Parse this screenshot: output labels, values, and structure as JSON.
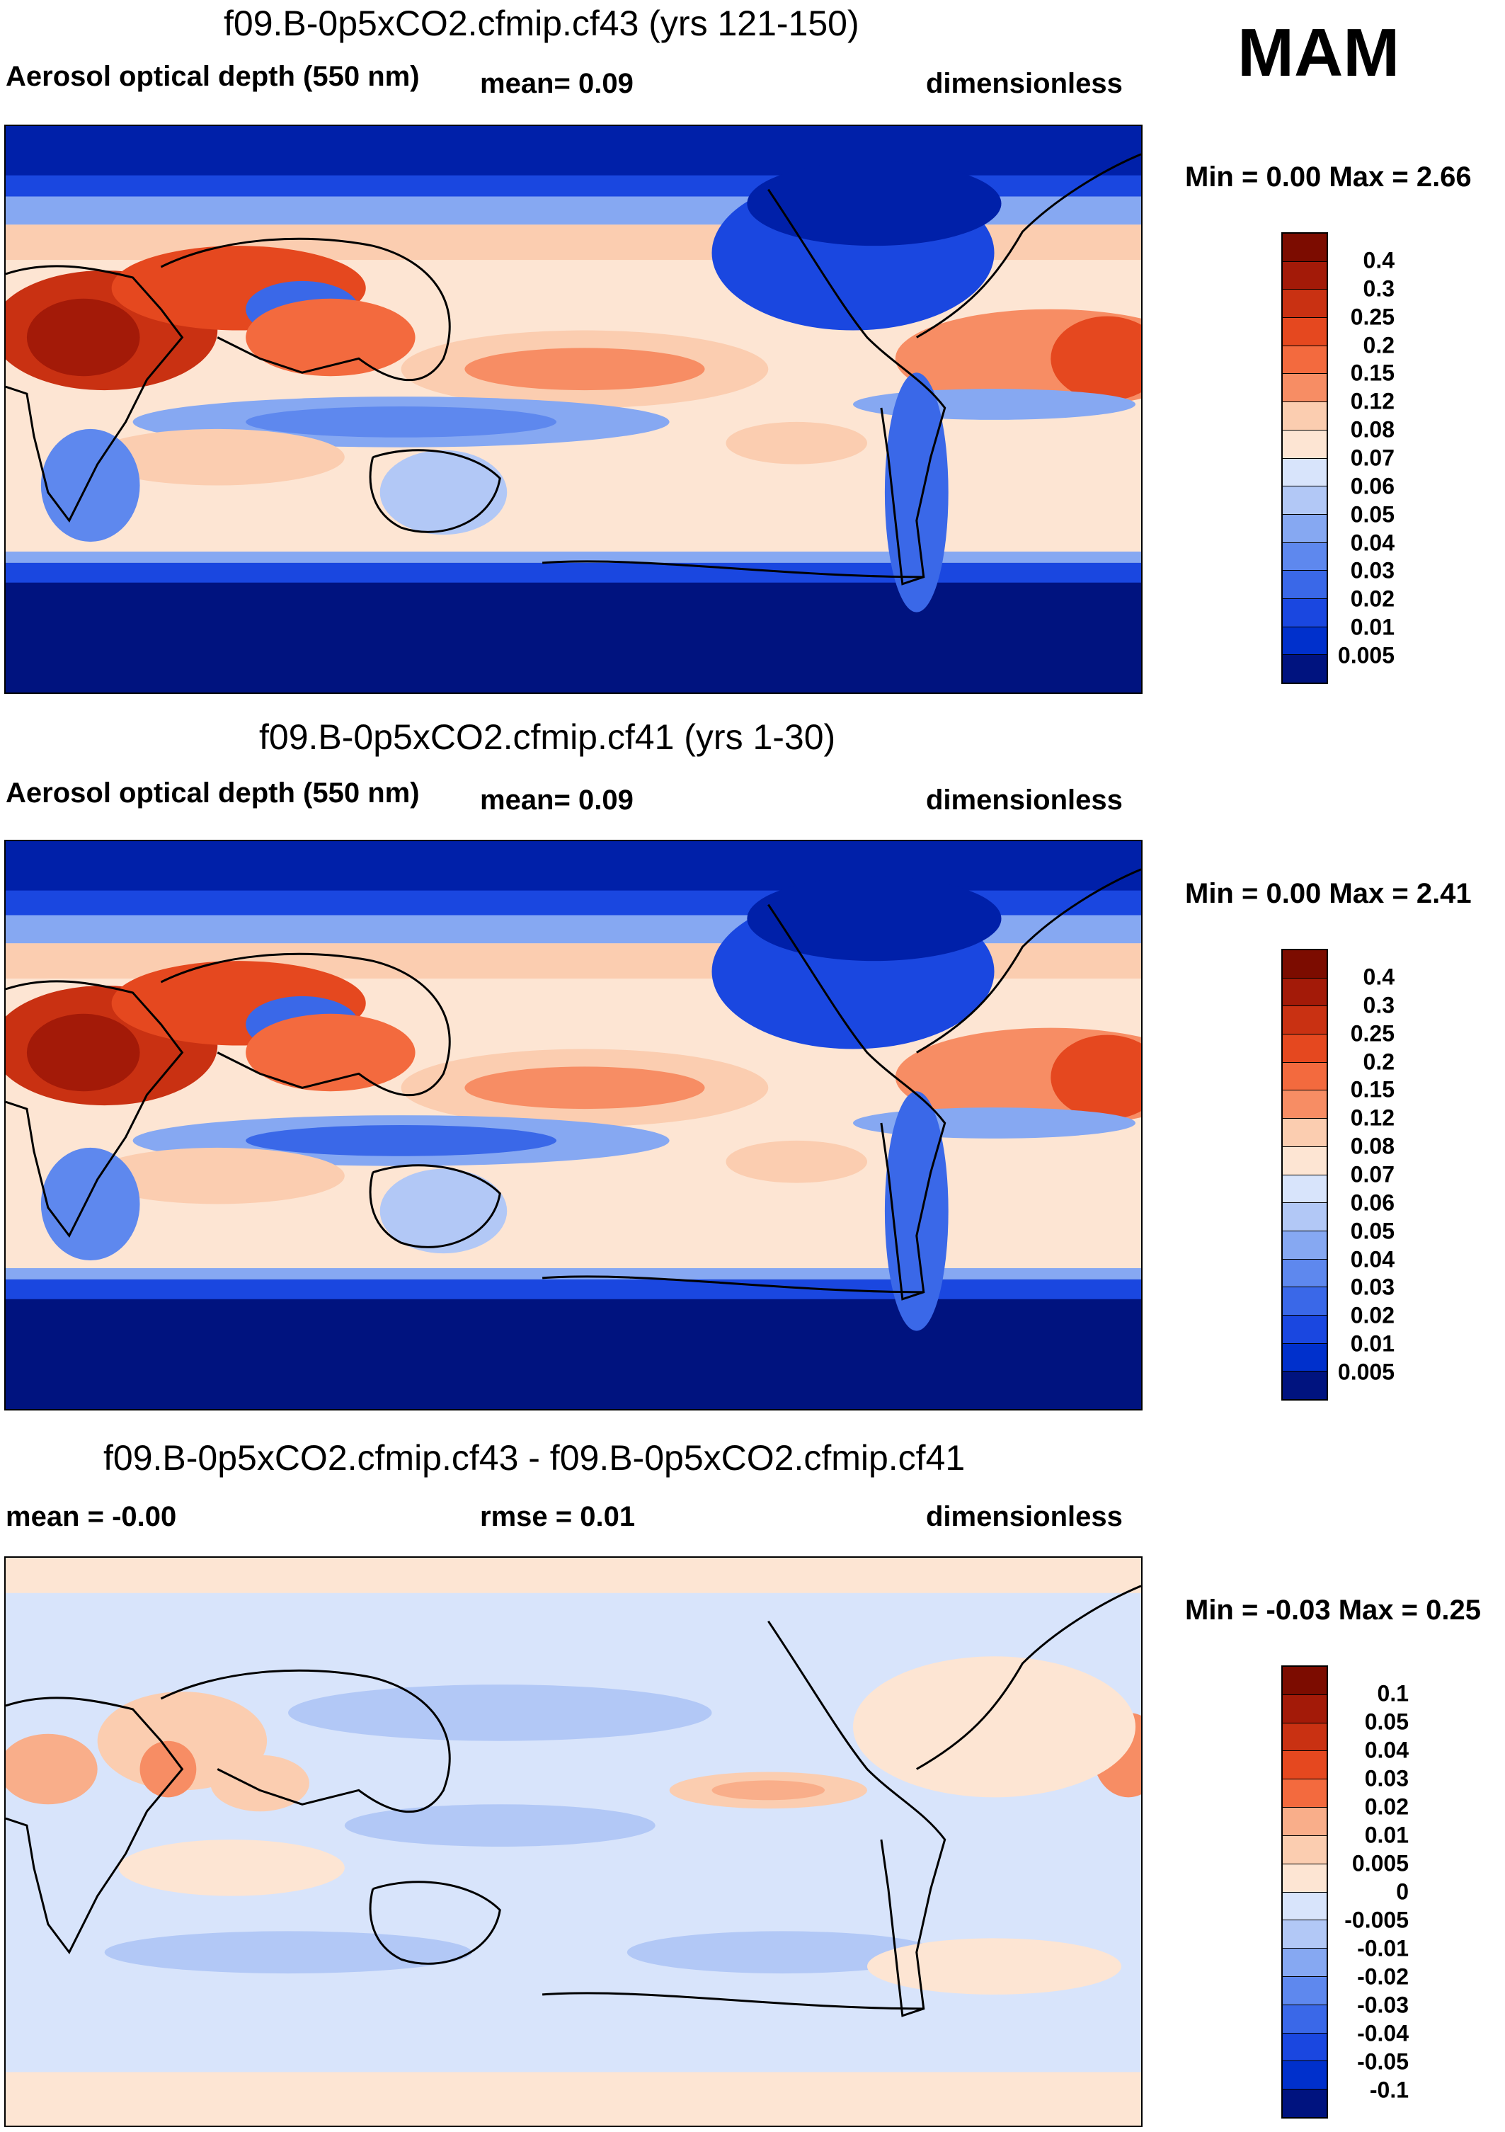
{
  "season": "MAM",
  "colors": {
    "blues": [
      "#00137f",
      "#0020a9",
      "#0030cc",
      "#1a47e0",
      "#3a68e8",
      "#5e88ee",
      "#86a8f2",
      "#b2c8f6",
      "#d8e4fb"
    ],
    "oranges": [
      "#fde5d3",
      "#fbcdb0",
      "#f9ae8a",
      "#f78d64",
      "#f36a3e",
      "#e5481f",
      "#c93112",
      "#a31a08",
      "#7c0c00"
    ],
    "land_line": "#000000"
  },
  "panels": [
    {
      "title": "f09.B-0p5xCO2.cfmip.cf43 (yrs 121-150)",
      "left_label": "Aerosol optical depth (550 nm)",
      "mid_label": "mean=   0.09",
      "right_label": "dimensionless",
      "minmax": "Min =   0.00 Max =   2.66",
      "colorbar_labels": [
        "0.4",
        "0.3",
        "0.25",
        "0.2",
        "0.15",
        "0.12",
        "0.08",
        "0.07",
        "0.06",
        "0.05",
        "0.04",
        "0.03",
        "0.02",
        "0.01",
        "0.005"
      ]
    },
    {
      "title": "f09.B-0p5xCO2.cfmip.cf41 (yrs 1-30)",
      "left_label": "Aerosol optical depth (550 nm)",
      "mid_label": "mean=   0.09",
      "right_label": "dimensionless",
      "minmax": "Min =   0.00 Max =   2.41",
      "colorbar_labels": [
        "0.4",
        "0.3",
        "0.25",
        "0.2",
        "0.15",
        "0.12",
        "0.08",
        "0.07",
        "0.06",
        "0.05",
        "0.04",
        "0.03",
        "0.02",
        "0.01",
        "0.005"
      ]
    },
    {
      "title": "f09.B-0p5xCO2.cfmip.cf43 - f09.B-0p5xCO2.cfmip.cf41",
      "left_label": "mean =  -0.00",
      "mid_label": "rmse =   0.01",
      "right_label": "dimensionless",
      "minmax": "Min =  -0.03 Max =   0.25",
      "colorbar_labels": [
        "0.1",
        "0.05",
        "0.04",
        "0.03",
        "0.02",
        "0.01",
        "0.005",
        "0",
        "-0.005",
        "-0.01",
        "-0.02",
        "-0.03",
        "-0.04",
        "-0.05",
        "-0.1"
      ]
    }
  ]
}
